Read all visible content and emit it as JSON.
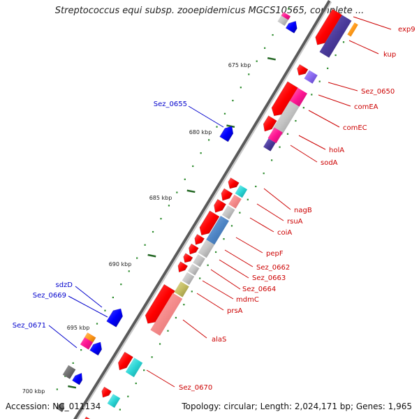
{
  "title": "Streptococcus equi subsp. zooepidemicus MGCS10565, complete ...",
  "footer": {
    "accession": "Accession: NC_011134",
    "topology": "Topology: circular; Length: 2,024,171 bp; Genes: 1,965"
  },
  "colors": {
    "backbone": "#888888",
    "tick_major": "#226622",
    "tick_minor": "#2a8a2a",
    "label_red": "#cc0000",
    "label_blue": "#0000cc"
  },
  "ticks": [
    {
      "label": "675 kbp"
    },
    {
      "label": "680 kbp"
    },
    {
      "label": "685 kbp"
    },
    {
      "label": "690 kbp"
    },
    {
      "label": "695 kbp"
    },
    {
      "label": "700 kbp"
    }
  ],
  "gene_labels": [
    {
      "text": "exp9",
      "strand": "forward",
      "color": "red"
    },
    {
      "text": "kup",
      "strand": "forward",
      "color": "red"
    },
    {
      "text": "Sez_0650",
      "strand": "forward",
      "color": "red"
    },
    {
      "text": "comEA",
      "strand": "forward",
      "color": "red"
    },
    {
      "text": "comEC",
      "strand": "forward",
      "color": "red"
    },
    {
      "text": "holA",
      "strand": "forward",
      "color": "red"
    },
    {
      "text": "sodA",
      "strand": "forward",
      "color": "red"
    },
    {
      "text": "nagB",
      "strand": "forward",
      "color": "red"
    },
    {
      "text": "rsuA",
      "strand": "forward",
      "color": "red"
    },
    {
      "text": "coiA",
      "strand": "forward",
      "color": "red"
    },
    {
      "text": "pepF",
      "strand": "forward",
      "color": "red"
    },
    {
      "text": "Sez_0662",
      "strand": "forward",
      "color": "red"
    },
    {
      "text": "Sez_0663",
      "strand": "forward",
      "color": "red"
    },
    {
      "text": "Sez_0664",
      "strand": "forward",
      "color": "red"
    },
    {
      "text": "mdmC",
      "strand": "forward",
      "color": "red"
    },
    {
      "text": "prsA",
      "strand": "forward",
      "color": "red"
    },
    {
      "text": "alaS",
      "strand": "forward",
      "color": "red"
    },
    {
      "text": "Sez_0670",
      "strand": "forward",
      "color": "red"
    },
    {
      "text": "Sez_0655",
      "strand": "reverse",
      "color": "blue"
    },
    {
      "text": "sdzD",
      "strand": "reverse",
      "color": "blue"
    },
    {
      "text": "Sez_0669",
      "strand": "reverse",
      "color": "blue"
    },
    {
      "text": "Sez_0671",
      "strand": "reverse",
      "color": "blue"
    }
  ]
}
